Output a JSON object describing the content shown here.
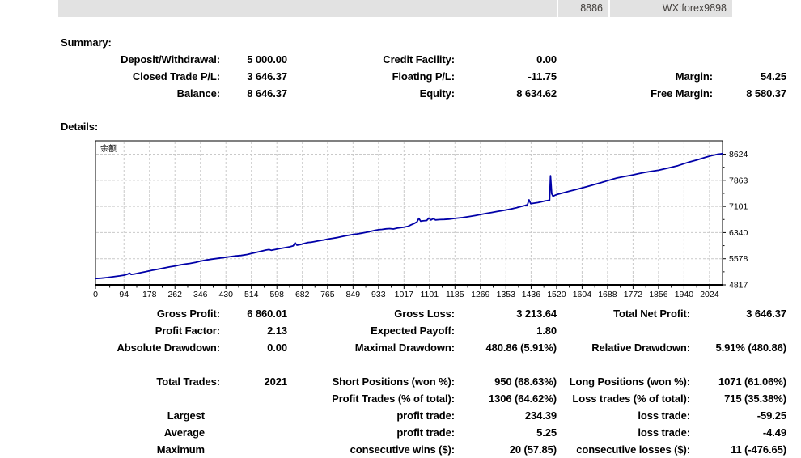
{
  "topbar": {
    "account": "8886",
    "contact": "WX:forex9898"
  },
  "colors": {
    "topbar_bg": "#e2e2e2",
    "text": "#000000",
    "chart_line": "#0000A8",
    "chart_grid": "#c9c9c9",
    "chart_title": "#00008B"
  },
  "summary": {
    "heading": "Summary:",
    "rows": [
      {
        "l1": "Deposit/Withdrawal:",
        "v1": "5 000.00",
        "l2": "Credit Facility:",
        "v2": "0.00",
        "l3": "",
        "v3": ""
      },
      {
        "l1": "Closed Trade P/L:",
        "v1": "3 646.37",
        "l2": "Floating P/L:",
        "v2": "-11.75",
        "l3": "Margin:",
        "v3": "54.25"
      },
      {
        "l1": "Balance:",
        "v1": "8 646.37",
        "l2": "Equity:",
        "v2": "8 634.62",
        "l3": "Free Margin:",
        "v3": "8 580.37"
      }
    ]
  },
  "details": {
    "heading": "Details:",
    "rows": [
      {
        "l1": "Gross Profit:",
        "v1": "6 860.01",
        "l2": "Gross Loss:",
        "v2": "3 213.64",
        "l3": "Total Net Profit:",
        "v3": "3 646.37"
      },
      {
        "l1": "Profit Factor:",
        "v1": "2.13",
        "l2": "Expected Payoff:",
        "v2": "1.80",
        "l3": "",
        "v3": ""
      },
      {
        "l1": "Absolute Drawdown:",
        "v1": "0.00",
        "l2": "Maximal Drawdown:",
        "v2": "480.86 (5.91%)",
        "l3": "Relative Drawdown:",
        "v3": "5.91% (480.86)"
      },
      {
        "l1": "Total Trades:",
        "v1": "2021",
        "l2": "Short Positions (won %):",
        "v2": "950 (68.63%)",
        "l3": "Long Positions (won %):",
        "v3": "1071 (61.06%)"
      },
      {
        "l1": "",
        "v1": "",
        "l2": "Profit Trades (% of total):",
        "v2": "1306 (64.62%)",
        "l3": "Loss trades (% of total):",
        "v3": "715 (35.38%)"
      },
      {
        "l1": "Largest",
        "v1": "",
        "l2": "profit trade:",
        "v2": "234.39",
        "l3": "loss trade:",
        "v3": "-59.25"
      },
      {
        "l1": "Average",
        "v1": "",
        "l2": "profit trade:",
        "v2": "5.25",
        "l3": "loss trade:",
        "v3": "-4.49"
      },
      {
        "l1": "Maximum",
        "v1": "",
        "l2": "consecutive wins ($):",
        "v2": "20 (57.85)",
        "l3": "consecutive losses ($):",
        "v3": "11 (-476.65)"
      }
    ]
  },
  "chart_data": {
    "type": "line",
    "title": "余额",
    "xlabel": "",
    "ylabel": "",
    "grid": "dashed",
    "legend_position": "none",
    "line_color": "#0000A8",
    "grid_color": "#c9c9c9",
    "title_color": "#00008B",
    "x_ticks": [
      0,
      94,
      178,
      262,
      346,
      430,
      514,
      598,
      682,
      765,
      849,
      933,
      1017,
      1101,
      1185,
      1269,
      1353,
      1436,
      1520,
      1604,
      1688,
      1772,
      1856,
      1940,
      2024
    ],
    "y_ticks": [
      4817,
      5578,
      6340,
      7101,
      7863,
      8624
    ],
    "xlim": [
      0,
      2067
    ],
    "ylim": [
      4817,
      9014
    ],
    "series": [
      {
        "name": "余额",
        "points": [
          [
            0,
            5000
          ],
          [
            20,
            5012
          ],
          [
            40,
            5032
          ],
          [
            60,
            5055
          ],
          [
            80,
            5078
          ],
          [
            95,
            5100
          ],
          [
            105,
            5126
          ],
          [
            112,
            5158
          ],
          [
            118,
            5122
          ],
          [
            128,
            5133
          ],
          [
            145,
            5165
          ],
          [
            165,
            5200
          ],
          [
            185,
            5238
          ],
          [
            205,
            5272
          ],
          [
            225,
            5306
          ],
          [
            245,
            5340
          ],
          [
            262,
            5366
          ],
          [
            280,
            5400
          ],
          [
            295,
            5420
          ],
          [
            312,
            5443
          ],
          [
            330,
            5470
          ],
          [
            346,
            5506
          ],
          [
            365,
            5540
          ],
          [
            385,
            5566
          ],
          [
            405,
            5590
          ],
          [
            425,
            5613
          ],
          [
            445,
            5640
          ],
          [
            462,
            5658
          ],
          [
            480,
            5673
          ],
          [
            500,
            5702
          ],
          [
            514,
            5730
          ],
          [
            530,
            5763
          ],
          [
            548,
            5800
          ],
          [
            562,
            5830
          ],
          [
            572,
            5846
          ],
          [
            580,
            5823
          ],
          [
            590,
            5843
          ],
          [
            605,
            5868
          ],
          [
            622,
            5896
          ],
          [
            640,
            5926
          ],
          [
            652,
            5956
          ],
          [
            658,
            6042
          ],
          [
            664,
            5973
          ],
          [
            675,
            5991
          ],
          [
            688,
            6021
          ],
          [
            700,
            6049
          ],
          [
            712,
            6059
          ],
          [
            725,
            6081
          ],
          [
            740,
            6106
          ],
          [
            755,
            6129
          ],
          [
            765,
            6149
          ],
          [
            780,
            6171
          ],
          [
            795,
            6191
          ],
          [
            810,
            6219
          ],
          [
            825,
            6246
          ],
          [
            840,
            6269
          ],
          [
            849,
            6286
          ],
          [
            862,
            6301
          ],
          [
            875,
            6319
          ],
          [
            890,
            6343
          ],
          [
            905,
            6371
          ],
          [
            920,
            6401
          ],
          [
            933,
            6423
          ],
          [
            945,
            6433
          ],
          [
            958,
            6449
          ],
          [
            970,
            6456
          ],
          [
            982,
            6443
          ],
          [
            995,
            6469
          ],
          [
            1013,
            6490
          ],
          [
            1030,
            6520
          ],
          [
            1040,
            6565
          ],
          [
            1050,
            6602
          ],
          [
            1060,
            6652
          ],
          [
            1066,
            6756
          ],
          [
            1072,
            6672
          ],
          [
            1080,
            6682
          ],
          [
            1092,
            6692
          ],
          [
            1099,
            6762
          ],
          [
            1106,
            6706
          ],
          [
            1113,
            6746
          ],
          [
            1121,
            6707
          ],
          [
            1135,
            6717
          ],
          [
            1150,
            6723
          ],
          [
            1165,
            6731
          ],
          [
            1185,
            6752
          ],
          [
            1210,
            6777
          ],
          [
            1236,
            6812
          ],
          [
            1254,
            6840
          ],
          [
            1269,
            6866
          ],
          [
            1288,
            6897
          ],
          [
            1306,
            6924
          ],
          [
            1324,
            6953
          ],
          [
            1342,
            6981
          ],
          [
            1353,
            6999
          ],
          [
            1370,
            7026
          ],
          [
            1388,
            7063
          ],
          [
            1402,
            7099
          ],
          [
            1415,
            7126
          ],
          [
            1424,
            7152
          ],
          [
            1429,
            7292
          ],
          [
            1435,
            7182
          ],
          [
            1445,
            7196
          ],
          [
            1458,
            7212
          ],
          [
            1472,
            7238
          ],
          [
            1483,
            7262
          ],
          [
            1492,
            7276
          ],
          [
            1497,
            7280
          ],
          [
            1500,
            7996
          ],
          [
            1504,
            7472
          ],
          [
            1508,
            7400
          ],
          [
            1515,
            7426
          ],
          [
            1520,
            7446
          ],
          [
            1535,
            7481
          ],
          [
            1550,
            7516
          ],
          [
            1565,
            7551
          ],
          [
            1580,
            7586
          ],
          [
            1604,
            7641
          ],
          [
            1625,
            7691
          ],
          [
            1645,
            7741
          ],
          [
            1665,
            7791
          ],
          [
            1688,
            7851
          ],
          [
            1705,
            7896
          ],
          [
            1720,
            7931
          ],
          [
            1740,
            7966
          ],
          [
            1760,
            8001
          ],
          [
            1772,
            8021
          ],
          [
            1790,
            8056
          ],
          [
            1810,
            8091
          ],
          [
            1830,
            8121
          ],
          [
            1856,
            8156
          ],
          [
            1888,
            8221
          ],
          [
            1920,
            8291
          ],
          [
            1952,
            8381
          ],
          [
            1984,
            8461
          ],
          [
            2010,
            8531
          ],
          [
            2030,
            8581
          ],
          [
            2050,
            8621
          ],
          [
            2067,
            8641
          ]
        ]
      }
    ]
  }
}
